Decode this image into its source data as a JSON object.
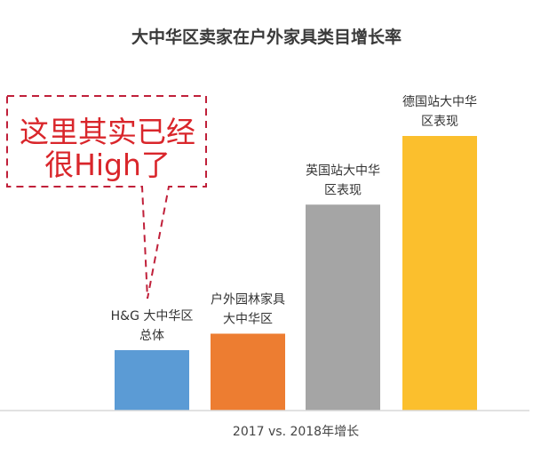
{
  "chart_data": {
    "type": "bar",
    "title": "大中华区卖家在户外家具类目增长率",
    "xlabel": "2017 vs. 2018年增长",
    "ylabel": "",
    "categories": [
      [
        "H&G 大中华区",
        "总体"
      ],
      [
        "户外园林家具",
        "大中华区"
      ],
      [
        "英国站大中华",
        "区表现"
      ],
      [
        "德国站大中华",
        "区表现"
      ]
    ],
    "values": [
      22,
      28,
      75,
      100
    ],
    "value_scale": "relative (no axis values printed; tallest bar = 100)",
    "ylim": [
      0,
      100
    ],
    "colors": [
      "#5b9bd5",
      "#ed7d31",
      "#a5a5a5",
      "#fbbf2d"
    ],
    "grid": false,
    "legend": "none",
    "annotation": {
      "lines": [
        "这里其实已经",
        "很High了"
      ],
      "color": "#d9262b",
      "style": "dashed speech bubble pointing to first bar"
    }
  }
}
